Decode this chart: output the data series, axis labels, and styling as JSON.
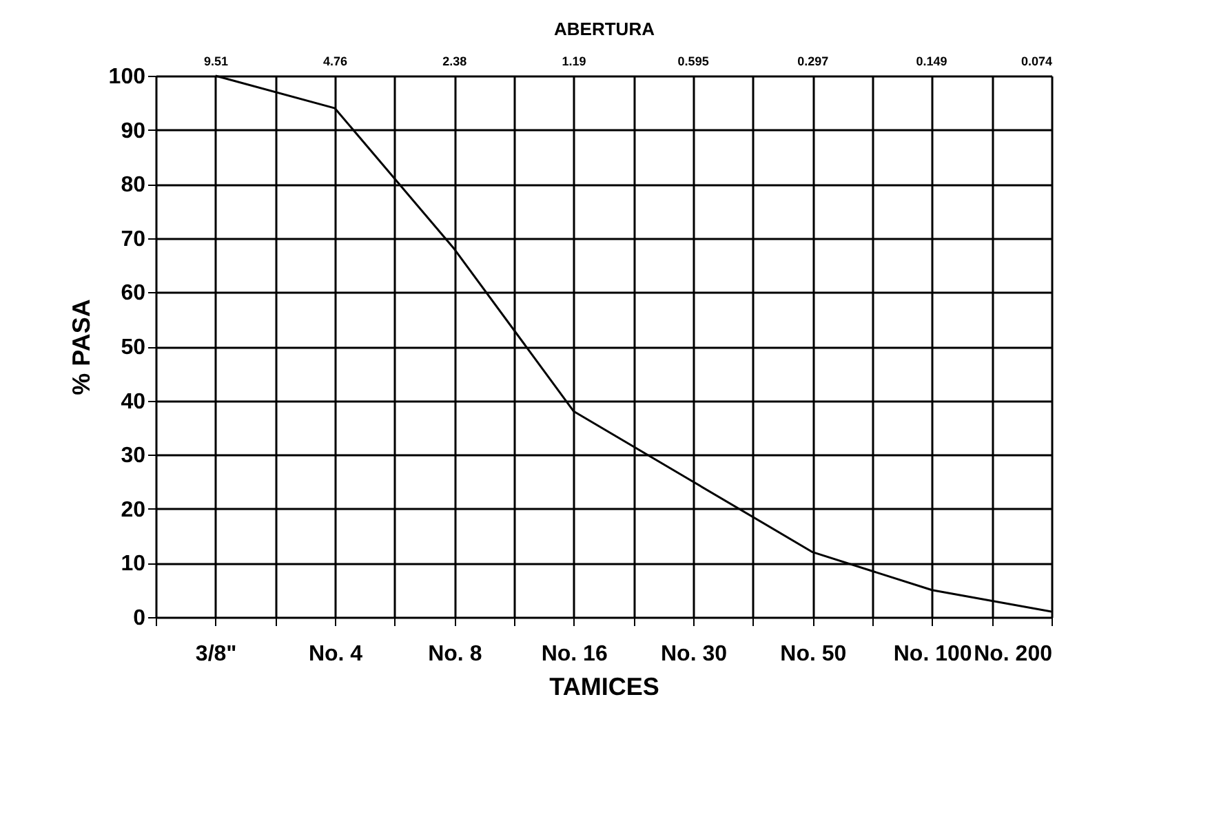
{
  "chart_data": {
    "type": "line",
    "xlabel": "TAMICES",
    "ylabel": "% PASA",
    "x2label": "ABERTURA",
    "categories": [
      "3/8\"",
      "No. 4",
      "No. 8",
      "No. 16",
      "No. 30",
      "No. 50",
      "No. 100",
      "No. 200"
    ],
    "series": [
      {
        "color": "#000000",
        "values": [
          100,
          94,
          68,
          38,
          25,
          12,
          5,
          1
        ]
      }
    ],
    "ylim": [
      0,
      100
    ],
    "yticks": [
      0,
      10,
      20,
      30,
      40,
      50,
      60,
      70,
      80,
      90,
      100
    ],
    "x2lim": [
      13.45,
      0.074
    ],
    "x2ticks": [
      9.51,
      4.76,
      2.38,
      1.19,
      0.595,
      0.297,
      0.149,
      0.074
    ],
    "log": "x2",
    "grid": true,
    "marker": "none",
    "line_style": "solid"
  }
}
